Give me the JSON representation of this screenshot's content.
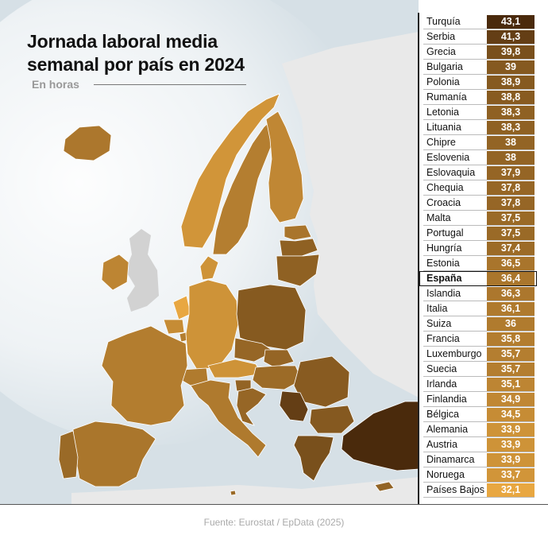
{
  "header": {
    "title": "Jornada laboral media semanal por país en 2024",
    "subtitle": "En horas"
  },
  "colors": {
    "sea": "#d6e0e6",
    "non_data_land": "#e9e9e9",
    "low": "#e8a741",
    "high": "#4a2a0c",
    "highlight_border": "#111111"
  },
  "chart_data": {
    "type": "table",
    "unit": "horas",
    "highlight": "España",
    "rows": [
      {
        "country": "Turquía",
        "label": "43,1",
        "value": 43.1
      },
      {
        "country": "Serbia",
        "label": "41,3",
        "value": 41.3
      },
      {
        "country": "Grecia",
        "label": "39,8",
        "value": 39.8
      },
      {
        "country": "Bulgaria",
        "label": "39",
        "value": 39.0
      },
      {
        "country": "Polonia",
        "label": "38,9",
        "value": 38.9
      },
      {
        "country": "Rumanía",
        "label": "38,8",
        "value": 38.8
      },
      {
        "country": "Letonia",
        "label": "38,3",
        "value": 38.3
      },
      {
        "country": "Lituania",
        "label": "38,3",
        "value": 38.3
      },
      {
        "country": "Chipre",
        "label": "38",
        "value": 38.0
      },
      {
        "country": "Eslovenia",
        "label": "38",
        "value": 38.0
      },
      {
        "country": "Eslovaquia",
        "label": "37,9",
        "value": 37.9
      },
      {
        "country": "Chequia",
        "label": "37,8",
        "value": 37.8
      },
      {
        "country": "Croacia",
        "label": "37,8",
        "value": 37.8
      },
      {
        "country": "Malta",
        "label": "37,5",
        "value": 37.5
      },
      {
        "country": "Portugal",
        "label": "37,5",
        "value": 37.5
      },
      {
        "country": "Hungría",
        "label": "37,4",
        "value": 37.4
      },
      {
        "country": "Estonia",
        "label": "36,5",
        "value": 36.5
      },
      {
        "country": "España",
        "label": "36,4",
        "value": 36.4
      },
      {
        "country": "Islandia",
        "label": "36,3",
        "value": 36.3
      },
      {
        "country": "Italia",
        "label": "36,1",
        "value": 36.1
      },
      {
        "country": "Suiza",
        "label": "36",
        "value": 36.0
      },
      {
        "country": "Francia",
        "label": "35,8",
        "value": 35.8
      },
      {
        "country": "Luxemburgo",
        "label": "35,7",
        "value": 35.7
      },
      {
        "country": "Suecia",
        "label": "35,7",
        "value": 35.7
      },
      {
        "country": "Irlanda",
        "label": "35,1",
        "value": 35.1
      },
      {
        "country": "Finlandia",
        "label": "34,9",
        "value": 34.9
      },
      {
        "country": "Bélgica",
        "label": "34,5",
        "value": 34.5
      },
      {
        "country": "Alemania",
        "label": "33,9",
        "value": 33.9
      },
      {
        "country": "Austria",
        "label": "33,9",
        "value": 33.9
      },
      {
        "country": "Dinamarca",
        "label": "33,9",
        "value": 33.9
      },
      {
        "country": "Noruega",
        "label": "33,7",
        "value": 33.7
      },
      {
        "country": "Países Bajos",
        "label": "32,1",
        "value": 32.1
      }
    ]
  },
  "footer": {
    "source": "Fuente: Eurostat / EpData (2025)"
  }
}
